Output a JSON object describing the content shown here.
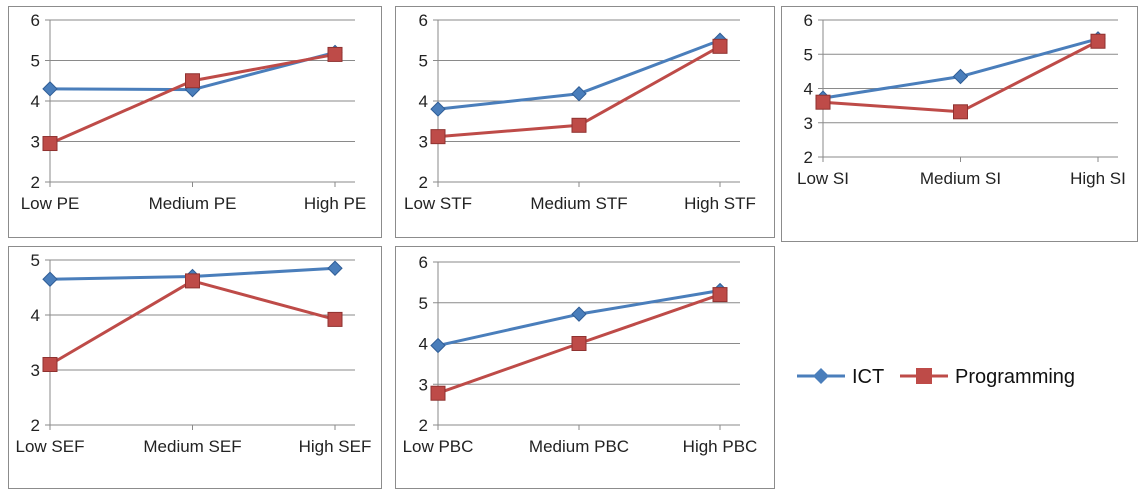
{
  "legend": [
    {
      "label": "ICT",
      "color": "#4a7ebb",
      "marker": "diamond"
    },
    {
      "label": "Programming",
      "color": "#be4b48",
      "marker": "square"
    }
  ],
  "chart_data": [
    {
      "type": "line",
      "categories": [
        "Low PE",
        "Medium PE",
        "High PE"
      ],
      "ylim": [
        2,
        6
      ],
      "yticks": [
        2,
        3,
        4,
        5,
        6
      ],
      "grid": true,
      "series": [
        {
          "name": "ICT",
          "values": [
            4.3,
            4.28,
            5.2
          ]
        },
        {
          "name": "Programming",
          "values": [
            2.95,
            4.5,
            5.15
          ]
        }
      ]
    },
    {
      "type": "line",
      "categories": [
        "Low STF",
        "Medium STF",
        "High STF"
      ],
      "ylim": [
        2,
        6
      ],
      "yticks": [
        2,
        3,
        4,
        5,
        6
      ],
      "grid": true,
      "series": [
        {
          "name": "ICT",
          "values": [
            3.8,
            4.18,
            5.5
          ]
        },
        {
          "name": "Programming",
          "values": [
            3.12,
            3.4,
            5.35
          ]
        }
      ]
    },
    {
      "type": "line",
      "categories": [
        "Low SI",
        "Medium SI",
        "High SI"
      ],
      "ylim": [
        2,
        6
      ],
      "yticks": [
        2,
        3,
        4,
        5,
        6
      ],
      "grid": true,
      "series": [
        {
          "name": "ICT",
          "values": [
            3.72,
            4.35,
            5.45
          ]
        },
        {
          "name": "Programming",
          "values": [
            3.6,
            3.32,
            5.38
          ]
        }
      ]
    },
    {
      "type": "line",
      "categories": [
        "Low SEF",
        "Medium SEF",
        "High SEF"
      ],
      "ylim": [
        2,
        5
      ],
      "yticks": [
        2,
        3,
        4,
        5
      ],
      "grid": true,
      "series": [
        {
          "name": "ICT",
          "values": [
            4.65,
            4.7,
            4.85
          ]
        },
        {
          "name": "Programming",
          "values": [
            3.1,
            4.62,
            3.92
          ]
        }
      ]
    },
    {
      "type": "line",
      "categories": [
        "Low PBC",
        "Medium PBC",
        "High PBC"
      ],
      "ylim": [
        2,
        6
      ],
      "yticks": [
        2,
        3,
        4,
        5,
        6
      ],
      "grid": true,
      "series": [
        {
          "name": "ICT",
          "values": [
            3.95,
            4.72,
            5.3
          ]
        },
        {
          "name": "Programming",
          "values": [
            2.78,
            4.0,
            5.2
          ]
        }
      ]
    }
  ]
}
